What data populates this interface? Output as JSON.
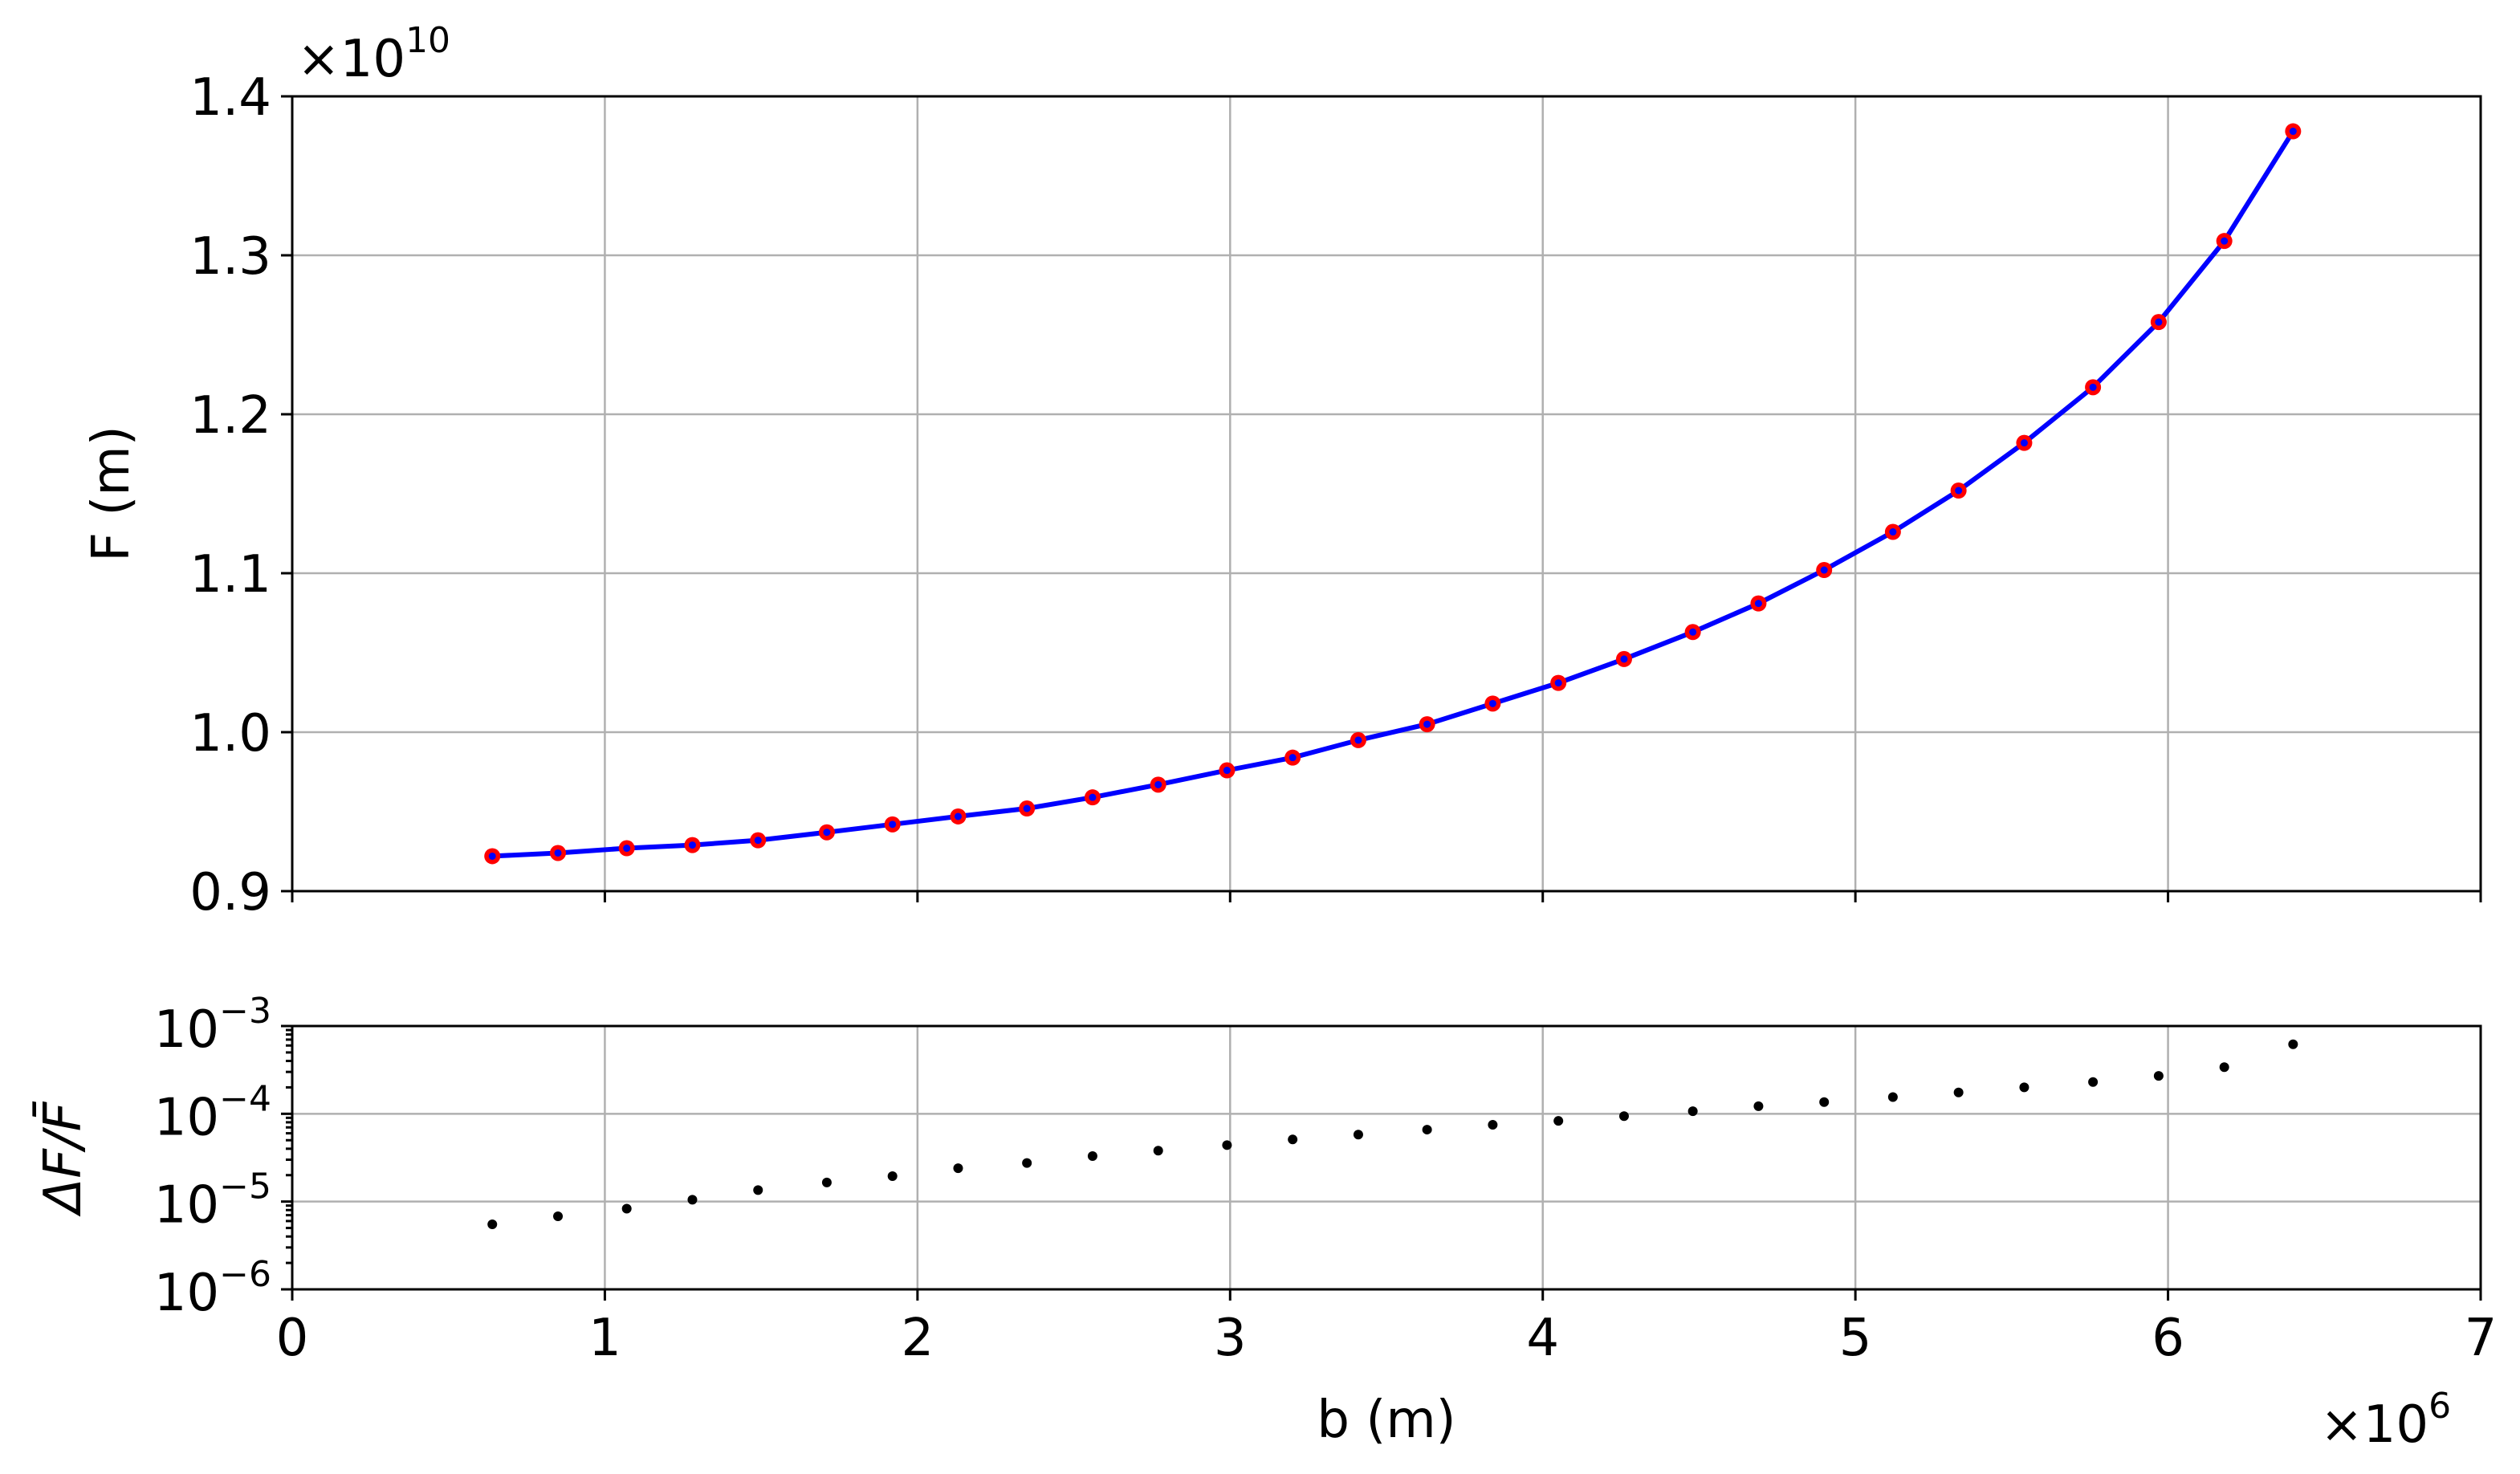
{
  "chart_data": [
    {
      "type": "line",
      "title": "",
      "xlabel": "b (m)",
      "ylabel": "F (m)",
      "y_offset_label": "×10",
      "y_offset_exp": "10",
      "xlim": [
        0,
        7
      ],
      "ylim": [
        0.9,
        1.4
      ],
      "xticks": [
        0,
        1,
        2,
        3,
        4,
        5,
        6,
        7
      ],
      "yticks": [
        "0.9",
        "1.0",
        "1.1",
        "1.2",
        "1.3",
        "1.4"
      ],
      "yticks_values": [
        0.9,
        1.0,
        1.1,
        1.2,
        1.3,
        1.4
      ],
      "grid": true,
      "x": [
        0.64,
        0.85,
        1.07,
        1.28,
        1.49,
        1.71,
        1.92,
        2.13,
        2.35,
        2.56,
        2.77,
        2.99,
        3.2,
        3.41,
        3.63,
        3.84,
        4.05,
        4.26,
        4.48,
        4.69,
        4.9,
        5.12,
        5.33,
        5.54,
        5.76,
        5.97,
        6.18,
        6.4
      ],
      "series": [
        {
          "style": "line",
          "color": "#0000ff",
          "values": [
            0.922,
            0.924,
            0.927,
            0.929,
            0.932,
            0.937,
            0.942,
            0.947,
            0.952,
            0.959,
            0.967,
            0.976,
            0.984,
            0.995,
            1.005,
            1.018,
            1.031,
            1.046,
            1.063,
            1.081,
            1.102,
            1.126,
            1.152,
            1.182,
            1.217,
            1.258,
            1.309,
            1.378
          ]
        },
        {
          "style": "markers",
          "color": "#ff0000",
          "values": [
            0.922,
            0.924,
            0.927,
            0.929,
            0.932,
            0.937,
            0.942,
            0.947,
            0.952,
            0.959,
            0.967,
            0.976,
            0.984,
            0.995,
            1.005,
            1.018,
            1.031,
            1.046,
            1.063,
            1.081,
            1.102,
            1.126,
            1.152,
            1.182,
            1.217,
            1.258,
            1.309,
            1.378
          ]
        }
      ]
    },
    {
      "type": "scatter",
      "title": "",
      "xlabel": "b (m)",
      "ylabel": "ΔF/F̄",
      "x_offset_label": "×10",
      "x_offset_exp": "6",
      "xlim": [
        0,
        7
      ],
      "ylim": [
        1e-06,
        0.001
      ],
      "yscale": "log",
      "xticks": [
        0,
        1,
        2,
        3,
        4,
        5,
        6,
        7
      ],
      "yticks": [
        {
          "base": "10",
          "exp": "−6",
          "value": 1e-06
        },
        {
          "base": "10",
          "exp": "−5",
          "value": 1e-05
        },
        {
          "base": "10",
          "exp": "−4",
          "value": 0.0001
        },
        {
          "base": "10",
          "exp": "−3",
          "value": 0.001
        }
      ],
      "grid": true,
      "x": [
        0.64,
        0.85,
        1.07,
        1.28,
        1.49,
        1.71,
        1.92,
        2.13,
        2.35,
        2.56,
        2.77,
        2.99,
        3.2,
        3.41,
        3.63,
        3.84,
        4.05,
        4.26,
        4.48,
        4.69,
        4.9,
        5.12,
        5.33,
        5.54,
        5.76,
        5.97,
        6.18,
        6.4
      ],
      "series": [
        {
          "style": "markers",
          "color": "#000000",
          "values": [
            5.5e-06,
            6.8e-06,
            8.3e-06,
            1.05e-05,
            1.35e-05,
            1.65e-05,
            1.95e-05,
            2.4e-05,
            2.75e-05,
            3.3e-05,
            3.8e-05,
            4.4e-05,
            5.1e-05,
            5.8e-05,
            6.6e-05,
            7.5e-05,
            8.3e-05,
            9.4e-05,
            0.000107,
            0.000122,
            0.000136,
            0.000155,
            0.000175,
            0.0002,
            0.00023,
            0.00027,
            0.00034,
            0.00062
          ]
        }
      ]
    }
  ]
}
